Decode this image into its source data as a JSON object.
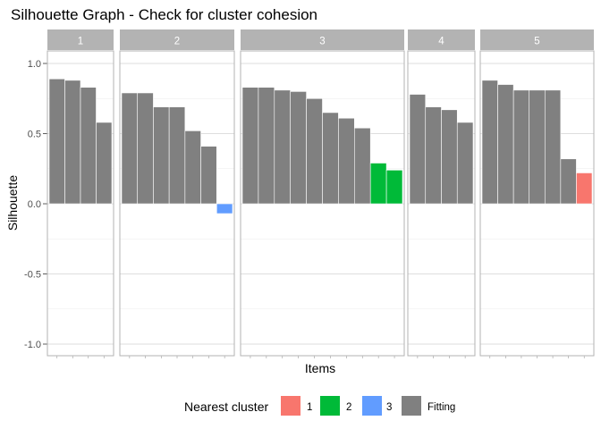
{
  "chart_data": {
    "type": "bar",
    "title": "Silhouette Graph - Check for cluster cohesion",
    "xlabel": "Items",
    "ylabel": "Silhouette",
    "ylim": [
      -1.1,
      1.1
    ],
    "y_ticks": [
      1.0,
      0.5,
      0.0,
      -0.5,
      -1.0
    ],
    "y_tick_labels": [
      "1.0",
      "0.5",
      "0.0",
      "-0.5",
      "-1.0"
    ],
    "grid": true,
    "facets": [
      {
        "label": "1",
        "items": [
          {
            "value": 0.89,
            "nearest": "Fitting"
          },
          {
            "value": 0.88,
            "nearest": "Fitting"
          },
          {
            "value": 0.83,
            "nearest": "Fitting"
          },
          {
            "value": 0.58,
            "nearest": "Fitting"
          }
        ]
      },
      {
        "label": "2",
        "items": [
          {
            "value": 0.79,
            "nearest": "Fitting"
          },
          {
            "value": 0.79,
            "nearest": "Fitting"
          },
          {
            "value": 0.69,
            "nearest": "Fitting"
          },
          {
            "value": 0.69,
            "nearest": "Fitting"
          },
          {
            "value": 0.52,
            "nearest": "Fitting"
          },
          {
            "value": 0.41,
            "nearest": "Fitting"
          },
          {
            "value": -0.07,
            "nearest": "3"
          }
        ]
      },
      {
        "label": "3",
        "items": [
          {
            "value": 0.83,
            "nearest": "Fitting"
          },
          {
            "value": 0.83,
            "nearest": "Fitting"
          },
          {
            "value": 0.81,
            "nearest": "Fitting"
          },
          {
            "value": 0.8,
            "nearest": "Fitting"
          },
          {
            "value": 0.75,
            "nearest": "Fitting"
          },
          {
            "value": 0.65,
            "nearest": "Fitting"
          },
          {
            "value": 0.61,
            "nearest": "Fitting"
          },
          {
            "value": 0.54,
            "nearest": "Fitting"
          },
          {
            "value": 0.29,
            "nearest": "2"
          },
          {
            "value": 0.24,
            "nearest": "2"
          }
        ]
      },
      {
        "label": "4",
        "items": [
          {
            "value": 0.78,
            "nearest": "Fitting"
          },
          {
            "value": 0.69,
            "nearest": "Fitting"
          },
          {
            "value": 0.67,
            "nearest": "Fitting"
          },
          {
            "value": 0.58,
            "nearest": "Fitting"
          }
        ]
      },
      {
        "label": "5",
        "items": [
          {
            "value": 0.88,
            "nearest": "Fitting"
          },
          {
            "value": 0.85,
            "nearest": "Fitting"
          },
          {
            "value": 0.81,
            "nearest": "Fitting"
          },
          {
            "value": 0.81,
            "nearest": "Fitting"
          },
          {
            "value": 0.81,
            "nearest": "Fitting"
          },
          {
            "value": 0.32,
            "nearest": "Fitting"
          },
          {
            "value": 0.22,
            "nearest": "1"
          }
        ]
      }
    ],
    "legend": {
      "title": "Nearest cluster",
      "position": "bottom",
      "entries": [
        {
          "label": "1",
          "color": "#F8766D"
        },
        {
          "label": "2",
          "color": "#00BA38"
        },
        {
          "label": "3",
          "color": "#619CFF"
        },
        {
          "label": "Fitting",
          "color": "#808080"
        }
      ]
    },
    "colors": {
      "strip": "#B3B3B3",
      "grid": "#DEDEDE",
      "panel_border": "#B3B3B3"
    }
  }
}
